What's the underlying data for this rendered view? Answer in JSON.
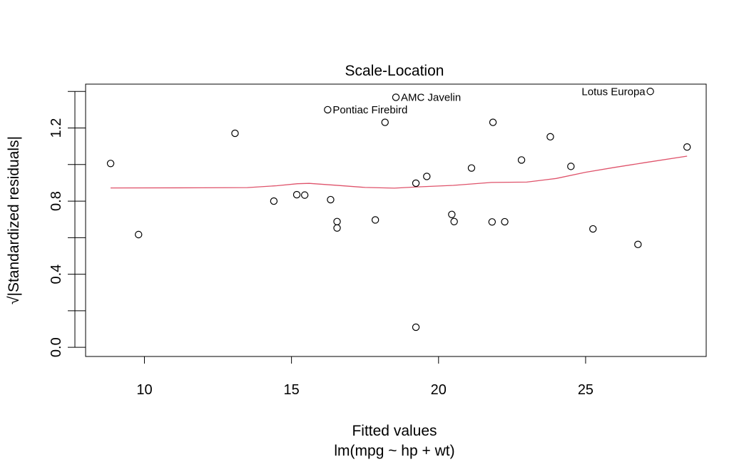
{
  "chart_data": {
    "type": "scatter",
    "title": "Scale-Location",
    "xlabel": "Fitted values",
    "xlabel_sub": "lm(mpg ~ hp + wt)",
    "ylabel": "√|Standardized residuals|",
    "xlim": [
      8.0,
      29.1
    ],
    "ylim": [
      -0.05,
      1.44
    ],
    "x_ticks": [
      10,
      15,
      20,
      25
    ],
    "x_tick_labels": [
      "10",
      "15",
      "20",
      "25"
    ],
    "y_ticks": [
      0.0,
      0.2,
      0.4,
      0.6,
      0.8,
      1.0,
      1.2,
      1.4
    ],
    "y_tick_labels": [
      "0.0",
      "",
      "0.4",
      "",
      "0.8",
      "",
      "1.2",
      ""
    ],
    "grid": false,
    "point_color": "#000000",
    "smooth_color": "#DF536B",
    "points": [
      {
        "x": 8.85,
        "y": 1.006
      },
      {
        "x": 9.8,
        "y": 0.617
      },
      {
        "x": 13.08,
        "y": 1.171
      },
      {
        "x": 14.4,
        "y": 0.8
      },
      {
        "x": 15.18,
        "y": 0.835
      },
      {
        "x": 15.45,
        "y": 0.833
      },
      {
        "x": 16.23,
        "y": 1.3
      },
      {
        "x": 16.33,
        "y": 0.808
      },
      {
        "x": 16.55,
        "y": 0.688
      },
      {
        "x": 16.55,
        "y": 0.653
      },
      {
        "x": 17.85,
        "y": 0.697
      },
      {
        "x": 18.18,
        "y": 1.231
      },
      {
        "x": 18.55,
        "y": 1.368
      },
      {
        "x": 19.23,
        "y": 0.898
      },
      {
        "x": 19.23,
        "y": 0.11
      },
      {
        "x": 19.6,
        "y": 0.935
      },
      {
        "x": 20.45,
        "y": 0.727
      },
      {
        "x": 20.53,
        "y": 0.688
      },
      {
        "x": 21.12,
        "y": 0.981
      },
      {
        "x": 21.82,
        "y": 0.686
      },
      {
        "x": 21.85,
        "y": 1.231
      },
      {
        "x": 22.25,
        "y": 0.687
      },
      {
        "x": 22.82,
        "y": 1.025
      },
      {
        "x": 23.8,
        "y": 1.152
      },
      {
        "x": 24.5,
        "y": 0.99
      },
      {
        "x": 25.25,
        "y": 0.648
      },
      {
        "x": 26.78,
        "y": 0.563
      },
      {
        "x": 27.2,
        "y": 1.4
      },
      {
        "x": 28.45,
        "y": 1.096
      }
    ],
    "labels": [
      {
        "text": "Pontiac Firebird",
        "x": 16.23,
        "y": 1.3,
        "side": "right"
      },
      {
        "text": "AMC Javelin",
        "x": 18.55,
        "y": 1.368,
        "side": "right"
      },
      {
        "text": "Lotus Europa",
        "x": 27.2,
        "y": 1.4,
        "side": "left"
      }
    ],
    "smooth_line": [
      {
        "x": 8.85,
        "y": 0.872
      },
      {
        "x": 12.0,
        "y": 0.873
      },
      {
        "x": 13.5,
        "y": 0.874
      },
      {
        "x": 14.5,
        "y": 0.884
      },
      {
        "x": 15.2,
        "y": 0.895
      },
      {
        "x": 15.6,
        "y": 0.897
      },
      {
        "x": 16.5,
        "y": 0.887
      },
      {
        "x": 17.5,
        "y": 0.875
      },
      {
        "x": 18.5,
        "y": 0.871
      },
      {
        "x": 19.3,
        "y": 0.878
      },
      {
        "x": 20.5,
        "y": 0.886
      },
      {
        "x": 21.8,
        "y": 0.902
      },
      {
        "x": 23.0,
        "y": 0.904
      },
      {
        "x": 24.0,
        "y": 0.924
      },
      {
        "x": 25.0,
        "y": 0.958
      },
      {
        "x": 26.0,
        "y": 0.985
      },
      {
        "x": 27.0,
        "y": 1.01
      },
      {
        "x": 28.45,
        "y": 1.046
      }
    ]
  }
}
